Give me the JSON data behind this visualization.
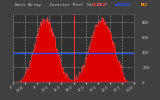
{
  "title": "West Array - Inverter Perf (W) 23-?",
  "bg_color": "#404040",
  "plot_bg_color": "#303030",
  "grid_color": "#888888",
  "red_fill_color": "#dd0000",
  "red_line_color": "#ff4444",
  "avg_line_color": "#2255ff",
  "avg_line_value": 0.42,
  "vert_line_color": "#ff3333",
  "vert_line_x": 0.5,
  "ylim": [
    0,
    1
  ],
  "xlim": [
    0,
    1
  ],
  "label_color": "#cccccc",
  "title_color": "#cccccc",
  "legend_actual_color": "#ff3333",
  "legend_avg_color": "#2255ff",
  "legend_max_color": "#ff8800",
  "ytick_labels_right": [
    "800",
    "600",
    "400",
    "200",
    "0"
  ],
  "ytick_pos": [
    0.88,
    0.66,
    0.44,
    0.22,
    0.0
  ],
  "xtick_labels": [
    "4",
    "6:00",
    "8",
    "10:0",
    "12:0",
    "14:0",
    "16:0",
    "18:0",
    "20:0",
    "22:0",
    "0:00"
  ],
  "num_points": 200,
  "seed": 17
}
